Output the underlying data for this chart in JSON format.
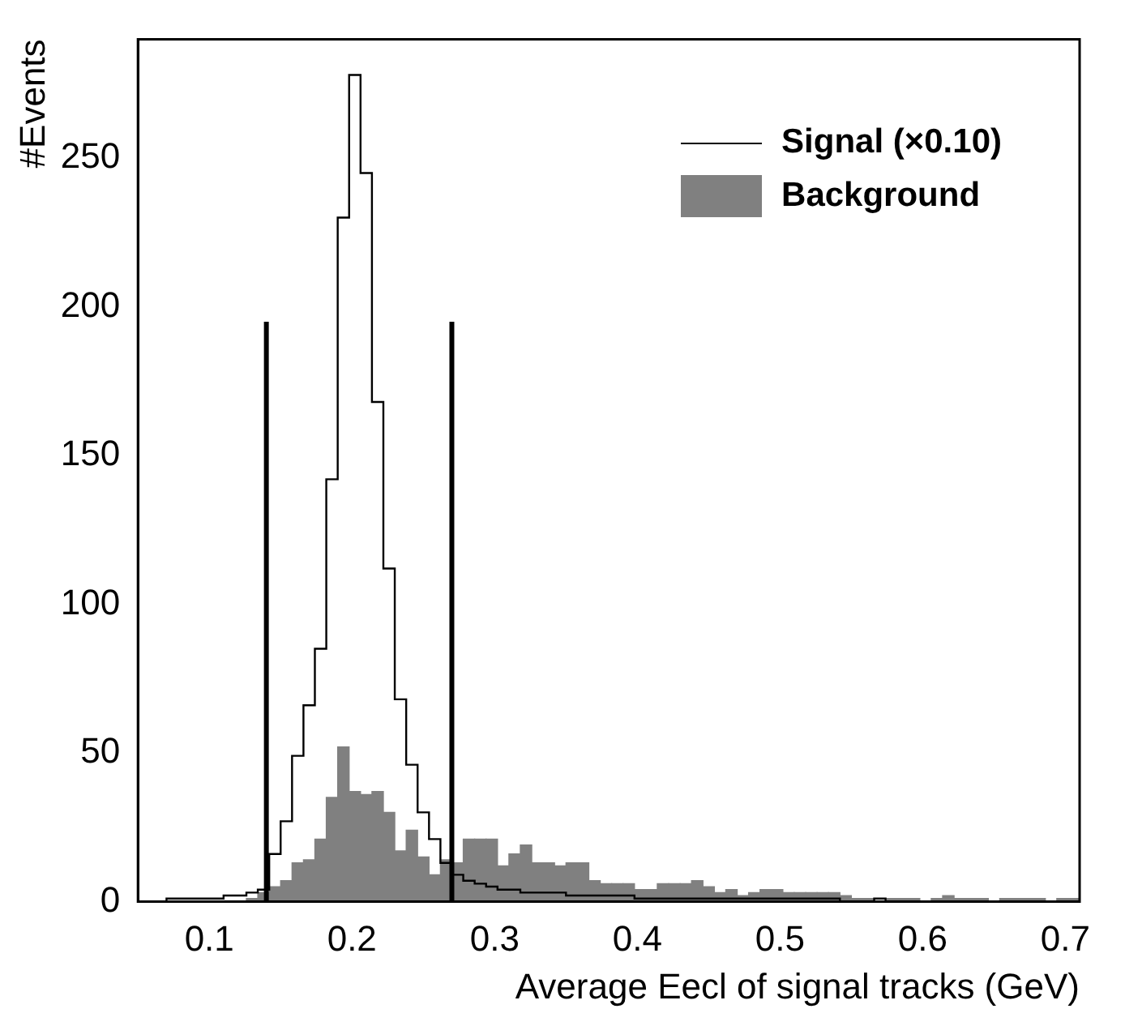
{
  "chart_data": {
    "type": "histogram",
    "xlabel": "Average Eecl of signal tracks (GeV)",
    "ylabel": "#Events",
    "bins": [
      0.054,
      0.062,
      0.07,
      0.078,
      0.086,
      0.094,
      0.102,
      0.11,
      0.118,
      0.126,
      0.134,
      0.142,
      0.15,
      0.158,
      0.166,
      0.174,
      0.182,
      0.19,
      0.198,
      0.206,
      0.214,
      0.222,
      0.23,
      0.238,
      0.246,
      0.254,
      0.262,
      0.27,
      0.278,
      0.286,
      0.294,
      0.302,
      0.31,
      0.318,
      0.326,
      0.334,
      0.342,
      0.35,
      0.358,
      0.366,
      0.374,
      0.382,
      0.39,
      0.398,
      0.406,
      0.414,
      0.422,
      0.43,
      0.438,
      0.446,
      0.454,
      0.462,
      0.47,
      0.478,
      0.486,
      0.494,
      0.502,
      0.51,
      0.518,
      0.526,
      0.534,
      0.542,
      0.55,
      0.558,
      0.566,
      0.574,
      0.582,
      0.59,
      0.598,
      0.606,
      0.614,
      0.622,
      0.63,
      0.638,
      0.646,
      0.654,
      0.662,
      0.67,
      0.678,
      0.686,
      0.694,
      0.702,
      0.71
    ],
    "series": [
      {
        "name": "Signal (×0.10)",
        "type": "step",
        "color": "#000000",
        "x": [
          0.058,
          0.066,
          0.074,
          0.082,
          0.09,
          0.098,
          0.106,
          0.114,
          0.122,
          0.13,
          0.138,
          0.146,
          0.154,
          0.162,
          0.17,
          0.178,
          0.186,
          0.194,
          0.202,
          0.21,
          0.218,
          0.226,
          0.234,
          0.242,
          0.25,
          0.258,
          0.266,
          0.274,
          0.282,
          0.29,
          0.298,
          0.306,
          0.314,
          0.322,
          0.33,
          0.338,
          0.346,
          0.354,
          0.362,
          0.37,
          0.378,
          0.386,
          0.394,
          0.402,
          0.41,
          0.418,
          0.426,
          0.434,
          0.442,
          0.45,
          0.458,
          0.466,
          0.474,
          0.482,
          0.49,
          0.498,
          0.506,
          0.514,
          0.522,
          0.53,
          0.538,
          0.546,
          0.554,
          0.562,
          0.57,
          0.578,
          0.586,
          0.594,
          0.602,
          0.61,
          0.618,
          0.626,
          0.634,
          0.642,
          0.65,
          0.658,
          0.666,
          0.674,
          0.682,
          0.69,
          0.698,
          0.706
        ],
        "values": [
          0,
          0,
          1,
          1,
          1,
          1,
          1,
          2,
          2,
          3,
          4,
          16,
          27,
          49,
          66,
          85,
          142,
          230,
          278,
          245,
          168,
          112,
          68,
          46,
          30,
          21,
          13,
          9,
          7,
          6,
          5,
          4,
          4,
          3,
          3,
          3,
          3,
          2,
          2,
          2,
          2,
          2,
          2,
          1,
          1,
          1,
          1,
          1,
          1,
          1,
          1,
          1,
          1,
          1,
          1,
          1,
          1,
          1,
          1,
          1,
          1,
          0,
          0,
          0,
          1,
          0,
          0,
          0,
          0,
          0,
          0,
          0,
          0,
          0,
          0,
          0,
          0,
          0,
          0,
          0,
          0,
          0
        ]
      },
      {
        "name": "Background",
        "type": "histogram",
        "color": "#808080",
        "values": [
          0,
          0,
          0,
          0,
          0,
          0,
          0,
          0,
          0,
          1,
          3,
          5,
          7,
          13,
          14,
          21,
          35,
          52,
          37,
          36,
          37,
          30,
          17,
          24,
          15,
          9,
          14,
          13,
          21,
          21,
          21,
          12,
          16,
          19,
          13,
          13,
          12,
          13,
          13,
          7,
          6,
          6,
          6,
          4,
          4,
          6,
          6,
          6,
          7,
          5,
          3,
          4,
          2,
          3,
          4,
          4,
          3,
          3,
          3,
          3,
          3,
          2,
          1,
          1,
          0,
          1,
          1,
          1,
          0,
          1,
          2,
          1,
          1,
          1,
          0,
          1,
          1,
          1,
          1,
          0,
          1,
          1
        ]
      },
      {
        "type": "line",
        "color": "#000000",
        "x": [
          0.14,
          0.14
        ],
        "values": [
          0,
          195
        ]
      },
      {
        "type": "line",
        "color": "#000000",
        "x": [
          0.27,
          0.27
        ],
        "values": [
          0,
          195
        ]
      }
    ],
    "xlim": [
      0.05,
      0.71
    ],
    "xticks": [
      0.1,
      0.2,
      0.3,
      0.4,
      0.5,
      0.6,
      0.7
    ],
    "ylim": [
      0,
      290
    ],
    "yticks": [
      0,
      50,
      100,
      150,
      200,
      250
    ],
    "legend": "top right",
    "grid": false
  }
}
